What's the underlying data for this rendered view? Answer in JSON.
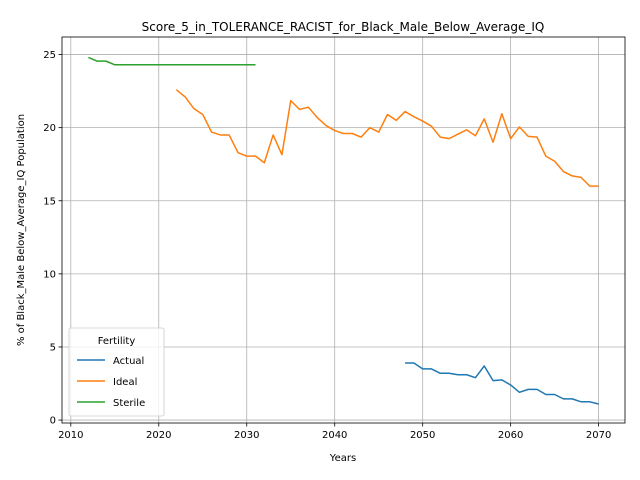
{
  "chart_data": {
    "type": "line",
    "title": "Score_5_in_TOLERANCE_RACIST_for_Black_Male_Below_Average_IQ",
    "xlabel": "Years",
    "ylabel": "% of Black_Male Below_Average_IQ Population",
    "xlim": [
      2009,
      2073
    ],
    "ylim": [
      -0.2,
      26.2
    ],
    "xticks": [
      2010,
      2020,
      2030,
      2040,
      2050,
      2060,
      2070
    ],
    "yticks": [
      0,
      5,
      10,
      15,
      20,
      25
    ],
    "grid": true,
    "legend": {
      "title": "Fertility",
      "position": "lower-left"
    },
    "series": [
      {
        "name": "Actual",
        "color": "#1f77b4",
        "x": [
          2048,
          2049,
          2050,
          2051,
          2052,
          2053,
          2054,
          2055,
          2056,
          2057,
          2058,
          2059,
          2060,
          2061,
          2062,
          2063,
          2064,
          2065,
          2066,
          2067,
          2068,
          2069,
          2070
        ],
        "y": [
          3.9,
          3.9,
          3.5,
          3.5,
          3.2,
          3.2,
          3.1,
          3.1,
          2.9,
          3.7,
          2.7,
          2.75,
          2.4,
          1.9,
          2.1,
          2.1,
          1.75,
          1.75,
          1.45,
          1.45,
          1.25,
          1.25,
          1.1
        ]
      },
      {
        "name": "Ideal",
        "color": "#ff7f0e",
        "x": [
          2022,
          2023,
          2024,
          2025,
          2026,
          2027,
          2028,
          2029,
          2030,
          2031,
          2032,
          2033,
          2034,
          2035,
          2036,
          2037,
          2038,
          2039,
          2040,
          2041,
          2042,
          2043,
          2044,
          2045,
          2046,
          2047,
          2048,
          2049,
          2050,
          2051,
          2052,
          2053,
          2054,
          2055,
          2056,
          2057,
          2058,
          2059,
          2060,
          2061,
          2062,
          2063,
          2064,
          2065,
          2066,
          2067,
          2068,
          2069,
          2070
        ],
        "y": [
          22.6,
          22.1,
          21.3,
          20.9,
          19.7,
          19.5,
          19.5,
          18.3,
          18.05,
          18.05,
          17.6,
          19.5,
          18.15,
          21.85,
          21.25,
          21.4,
          20.7,
          20.15,
          19.8,
          19.6,
          19.6,
          19.35,
          20.0,
          19.7,
          20.9,
          20.5,
          21.1,
          20.75,
          20.45,
          20.1,
          19.35,
          19.25,
          19.55,
          19.85,
          19.45,
          20.6,
          19.0,
          20.95,
          19.25,
          20.05,
          19.4,
          19.35,
          18.05,
          17.7,
          17.0,
          16.7,
          16.6,
          16.0,
          16.0
        ]
      },
      {
        "name": "Sterile",
        "color": "#2ca02c",
        "x": [
          2012,
          2013,
          2014,
          2015,
          2016,
          2017,
          2018,
          2019,
          2020,
          2021,
          2022,
          2023,
          2024,
          2025,
          2026,
          2027,
          2028,
          2029,
          2030,
          2031
        ],
        "y": [
          24.8,
          24.55,
          24.55,
          24.3,
          24.3,
          24.3,
          24.3,
          24.3,
          24.3,
          24.3,
          24.3,
          24.3,
          24.3,
          24.3,
          24.3,
          24.3,
          24.3,
          24.3,
          24.3,
          24.3
        ]
      }
    ]
  }
}
